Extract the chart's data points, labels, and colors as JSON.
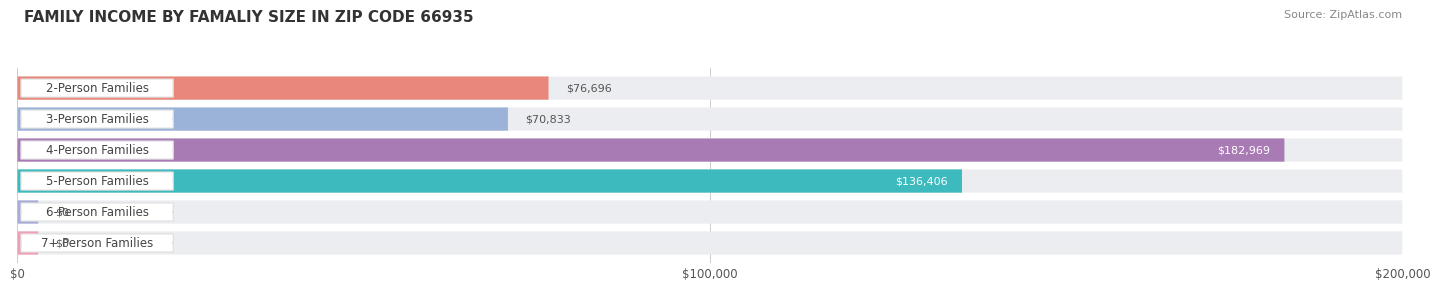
{
  "title": "FAMILY INCOME BY FAMALIY SIZE IN ZIP CODE 66935",
  "source": "Source: ZipAtlas.com",
  "categories": [
    "2-Person Families",
    "3-Person Families",
    "4-Person Families",
    "5-Person Families",
    "6-Person Families",
    "7+ Person Families"
  ],
  "values": [
    76696,
    70833,
    182969,
    136406,
    0,
    0
  ],
  "bar_colors": [
    "#E8877A",
    "#9BB3D8",
    "#A97BB5",
    "#3DBABD",
    "#A8ABD8",
    "#F0A0B5"
  ],
  "bar_bg_color": "#ECEDF0",
  "xmax": 200000,
  "xticklabels": [
    "$0",
    "$100,000",
    "$200,000"
  ],
  "value_labels": [
    "$76,696",
    "$70,833",
    "$182,969",
    "$136,406",
    "$0",
    "$0"
  ],
  "title_fontsize": 11,
  "source_fontsize": 8,
  "label_fontsize": 8.5,
  "value_fontsize": 8,
  "tick_fontsize": 8.5,
  "value_inside_color": "#FFFFFF",
  "value_outside_color": "#555555",
  "inside_threshold": 100000
}
